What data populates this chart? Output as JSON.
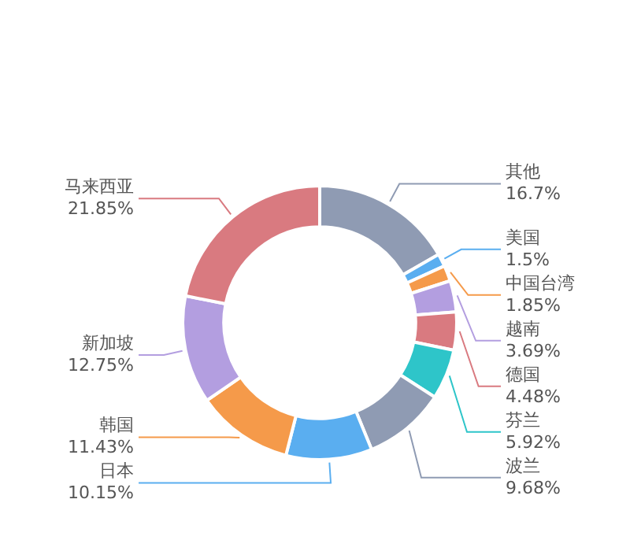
{
  "chart_data": {
    "type": "donut",
    "categories": [
      "其他",
      "美国",
      "中国台湾",
      "越南",
      "德国",
      "芬兰",
      "波兰",
      "日本",
      "韩国",
      "新加坡",
      "马来西亚"
    ],
    "values": [
      16.7,
      1.5,
      1.85,
      3.69,
      4.48,
      5.92,
      9.68,
      10.15,
      11.43,
      12.75,
      21.85
    ],
    "value_labels": [
      "16.7%",
      "1.5%",
      "1.85%",
      "3.69%",
      "4.48%",
      "5.92%",
      "9.68%",
      "10.15%",
      "11.43%",
      "12.75%",
      "21.85%"
    ],
    "colors": [
      "#8f9bb3",
      "#5aaef0",
      "#f59a4a",
      "#b39ee0",
      "#d97a80",
      "#2ec5c9",
      "#8f9bb3",
      "#5aaef0",
      "#f59a4a",
      "#b39ee0",
      "#d97a80"
    ],
    "legend": false
  }
}
